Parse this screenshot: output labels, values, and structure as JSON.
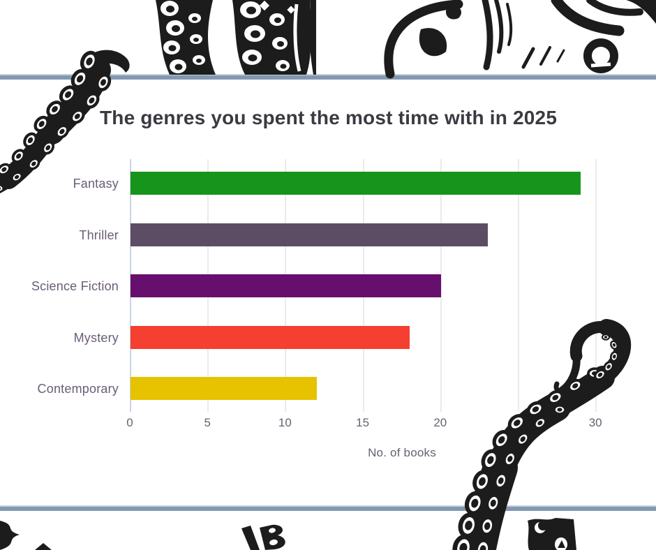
{
  "page": {
    "background": "#ffffff",
    "divider_color": "#8399b0",
    "divider_edge_color": "#c6d1dc"
  },
  "chart_data": {
    "type": "bar",
    "orientation": "horizontal",
    "title": "The genres you spent the most time with in 2025",
    "categories": [
      "Fantasy",
      "Thriller",
      "Science Fiction",
      "Mystery",
      "Contemporary"
    ],
    "values": [
      29,
      23,
      20,
      18,
      12
    ],
    "bar_colors": [
      "#17941b",
      "#5c4d64",
      "#670f6d",
      "#f43f31",
      "#e6c200"
    ],
    "xlabel": "No. of books",
    "x_ticks": [
      0,
      5,
      10,
      15,
      20,
      25,
      30
    ],
    "xlim": [
      0,
      31
    ],
    "grid": "vertical-gridlines",
    "legend": "none",
    "title_color": "#3a3a42",
    "category_label_color": "#6a5d76",
    "tick_label_color": "#666270",
    "axis_line_color": "#ccd3e6",
    "grid_color": "#ebebeb"
  },
  "decorations": {
    "style": "black and white octopus / kraken woodcut illustrations",
    "ink_color": "#1c1c1c",
    "items": [
      {
        "name": "octopus-tentacles-top-center"
      },
      {
        "name": "kraken-woodcut-top-right"
      },
      {
        "name": "octopus-tentacle-left"
      },
      {
        "name": "octopus-tentacle-bottom-right"
      },
      {
        "name": "torn-glyph-bottom-left"
      },
      {
        "name": "letter-b-glyph-bottom-center"
      },
      {
        "name": "creature-glyph-bottom-right"
      }
    ]
  }
}
